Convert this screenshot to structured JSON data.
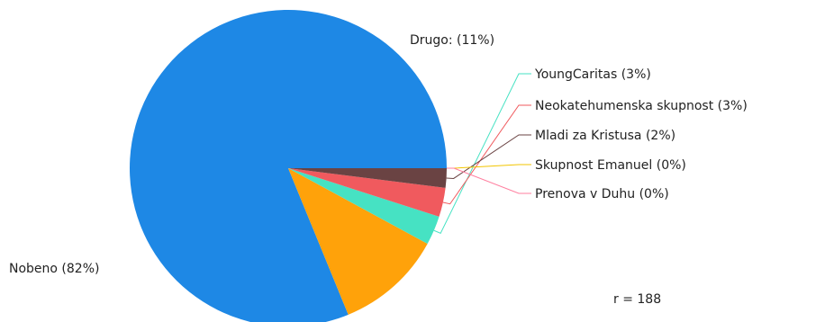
{
  "chart_data": {
    "type": "pie",
    "slices": [
      {
        "label": "Nobeno (82%)",
        "value": 82,
        "color": "#1e88e5"
      },
      {
        "label": "Drugo: (11%)",
        "value": 11,
        "color": "#ffa20a"
      },
      {
        "label": "YoungCaritas (3%)",
        "value": 3,
        "color": "#46e2c3"
      },
      {
        "label": "Neokatehumenska skupnost (3%)",
        "value": 3,
        "color": "#f05a5e"
      },
      {
        "label": "Mladi za Kristusa (2%)",
        "value": 2,
        "color": "#6a4343"
      },
      {
        "label": "Skupnost Emanuel (0%)",
        "value": 0,
        "color": "#f2c500"
      },
      {
        "label": "Prenova v Duhu (0%)",
        "value": 0,
        "color": "#ff7f9f"
      }
    ],
    "annotation": "r = 188",
    "start_angle_deg": 0,
    "direction": "counterclockwise"
  }
}
